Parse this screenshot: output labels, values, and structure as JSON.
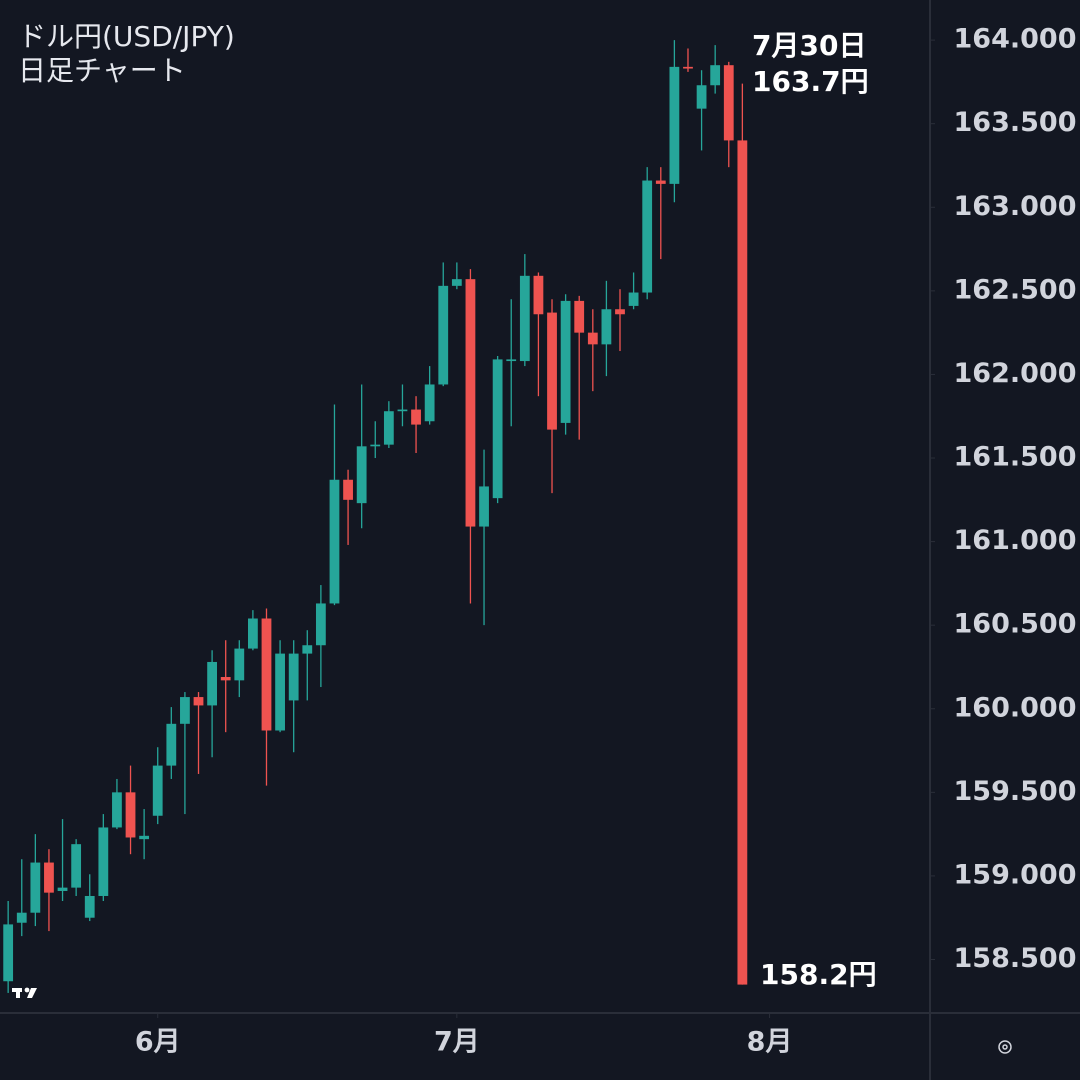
{
  "chart_data": {
    "type": "candlestick",
    "title": "ドル円(USD/JPY)",
    "subtitle": "日足チャート",
    "annotations": [
      "7月30日",
      "163.7円",
      "158.2円"
    ],
    "up_color": "#26a69a",
    "down_color": "#ef5350",
    "open": [
      158.37,
      158.72,
      158.78,
      159.08,
      158.91,
      158.93,
      158.75,
      158.88,
      159.29,
      159.5,
      159.22,
      159.36,
      159.66,
      159.91,
      160.07,
      160.02,
      160.19,
      160.17,
      160.36,
      160.54,
      159.87,
      160.05,
      160.33,
      160.38,
      160.63,
      161.37,
      161.23,
      161.57,
      161.58,
      161.78,
      161.79,
      161.72,
      161.94,
      162.53,
      162.57,
      161.09,
      161.26,
      162.08,
      162.08,
      162.59,
      162.37,
      161.71,
      162.44,
      162.25,
      162.18,
      162.39,
      162.41,
      162.49,
      163.16,
      163.14,
      163.84,
      163.59,
      163.73,
      163.85,
      163.4
    ],
    "high": [
      158.85,
      159.1,
      159.25,
      159.16,
      159.34,
      159.22,
      159.01,
      159.37,
      159.58,
      159.66,
      159.4,
      159.77,
      160.01,
      160.1,
      160.1,
      160.35,
      160.41,
      160.41,
      160.59,
      160.6,
      160.41,
      160.41,
      160.47,
      160.74,
      161.82,
      161.43,
      161.94,
      161.72,
      161.84,
      161.94,
      161.87,
      162.05,
      162.67,
      162.67,
      162.63,
      161.55,
      162.11,
      162.45,
      162.72,
      162.61,
      162.45,
      162.48,
      162.47,
      162.39,
      162.56,
      162.51,
      162.61,
      163.24,
      163.24,
      164.0,
      163.95,
      163.82,
      163.97,
      163.87,
      163.74
    ],
    "low": [
      158.3,
      158.64,
      158.7,
      158.67,
      158.85,
      158.88,
      158.73,
      158.85,
      159.28,
      159.13,
      159.1,
      159.31,
      159.58,
      159.37,
      159.61,
      159.71,
      159.86,
      160.07,
      160.35,
      159.54,
      159.86,
      159.74,
      160.05,
      160.13,
      160.62,
      160.98,
      161.08,
      161.5,
      161.56,
      161.69,
      161.53,
      161.7,
      161.93,
      162.51,
      160.63,
      160.5,
      161.23,
      161.69,
      162.05,
      161.87,
      161.29,
      161.64,
      161.61,
      161.9,
      161.99,
      162.14,
      162.39,
      162.45,
      162.69,
      163.03,
      163.81,
      163.34,
      163.68,
      163.24,
      158.35
    ],
    "close": [
      158.71,
      158.78,
      159.08,
      158.9,
      158.93,
      159.19,
      158.88,
      159.29,
      159.5,
      159.23,
      159.24,
      159.66,
      159.91,
      160.07,
      160.02,
      160.28,
      160.17,
      160.36,
      160.54,
      159.87,
      160.33,
      160.33,
      160.38,
      160.63,
      161.37,
      161.25,
      161.57,
      161.58,
      161.78,
      161.79,
      161.7,
      161.94,
      162.53,
      162.57,
      161.09,
      161.33,
      162.09,
      162.09,
      162.59,
      162.36,
      161.67,
      162.44,
      162.25,
      162.18,
      162.39,
      162.36,
      162.49,
      163.16,
      163.14,
      163.84,
      163.83,
      163.73,
      163.85,
      163.4,
      158.35
    ],
    "xlim": [
      -0.6,
      67.8
    ],
    "xticks": [
      {
        "value": 11,
        "label": "6月"
      },
      {
        "value": 33,
        "label": "7月"
      },
      {
        "value": 56,
        "label": "8月"
      }
    ],
    "ylim": [
      158.18,
      164.24
    ],
    "yticks": [
      {
        "value": 164,
        "label": "164.000"
      },
      {
        "value": 163.5,
        "label": "163.500"
      },
      {
        "value": 163,
        "label": "163.000"
      },
      {
        "value": 162.5,
        "label": "162.500"
      },
      {
        "value": 162,
        "label": "162.000"
      },
      {
        "value": 161.5,
        "label": "161.500"
      },
      {
        "value": 161,
        "label": "161.000"
      },
      {
        "value": 160.5,
        "label": "160.500"
      },
      {
        "value": 160,
        "label": "160.000"
      },
      {
        "value": 159.5,
        "label": "159.500"
      },
      {
        "value": 159,
        "label": "159.000"
      },
      {
        "value": 158.5,
        "label": "158.500"
      }
    ]
  }
}
